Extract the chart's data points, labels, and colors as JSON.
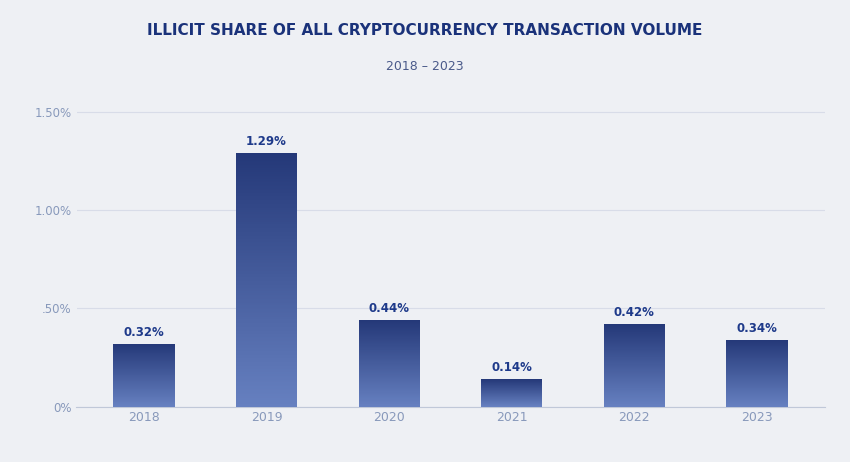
{
  "title": "ILLICIT SHARE OF ALL CRYPTOCURRENCY TRANSACTION VOLUME",
  "subtitle": "2018 – 2023",
  "categories": [
    "2018",
    "2019",
    "2020",
    "2021",
    "2022",
    "2023"
  ],
  "values": [
    0.32,
    1.29,
    0.44,
    0.14,
    0.42,
    0.34
  ],
  "labels": [
    "0.32%",
    "1.29%",
    "0.44%",
    "0.14%",
    "0.42%",
    "0.34%"
  ],
  "bar_color_top": "#243878",
  "bar_color_bottom": "#6680c0",
  "background_color": "#eef0f4",
  "title_color": "#1a327a",
  "subtitle_color": "#4a5a8a",
  "tick_color": "#8899bb",
  "label_color": "#1e3a8a",
  "grid_color": "#d8dce8",
  "spine_color": "#c0c8d8",
  "ylim": [
    0,
    1.6
  ],
  "yticks": [
    0,
    0.5,
    1.0,
    1.5
  ],
  "ytick_labels": [
    "0%",
    ".50%",
    "1.00%",
    "1.50%"
  ],
  "bar_width": 0.5
}
